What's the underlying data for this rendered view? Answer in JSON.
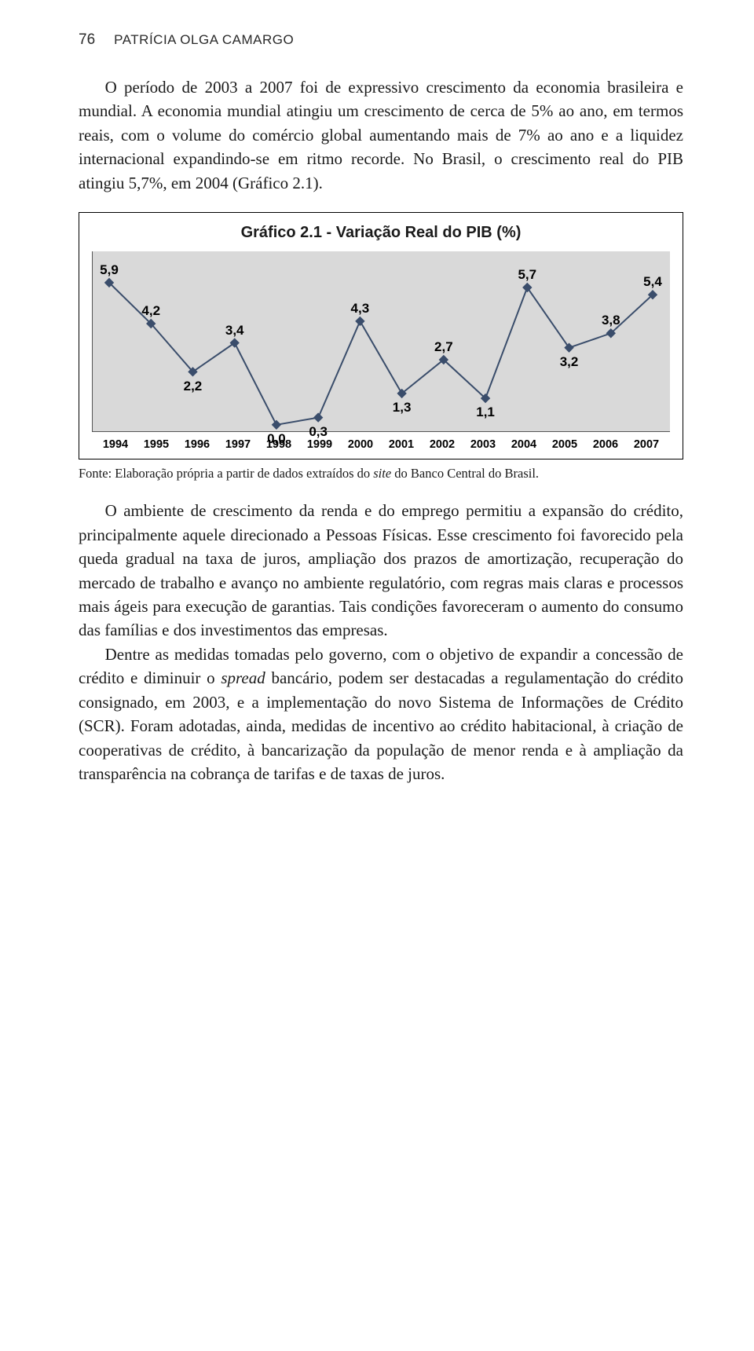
{
  "header": {
    "page_number": "76",
    "author": "PATRÍCIA OLGA CAMARGO"
  },
  "para1": "O período de 2003 a 2007 foi de expressivo crescimento da economia brasileira e mundial. A economia mundial atingiu um crescimento de cerca de 5% ao ano, em termos reais, com o volume do comércio global aumentando mais de 7% ao ano e a liquidez internacional expandindo-se em ritmo recorde. No Brasil, o crescimento real do PIB atingiu 5,7%, em 2004 (Gráfico 2.1).",
  "chart": {
    "title": "Gráfico 2.1 - Variação Real do PIB (%)",
    "type": "line",
    "years": [
      "1994",
      "1995",
      "1996",
      "1997",
      "1998",
      "1999",
      "2000",
      "2001",
      "2002",
      "2003",
      "2004",
      "2005",
      "2006",
      "2007"
    ],
    "values": [
      5.9,
      4.2,
      2.2,
      3.4,
      0.0,
      0.3,
      4.3,
      1.3,
      2.7,
      1.1,
      5.7,
      3.2,
      3.8,
      5.4
    ],
    "labels": [
      "5,9",
      "4,2",
      "2,2",
      "3,4",
      "0,0",
      "0,3",
      "4,3",
      "1,3",
      "2,7",
      "1,1",
      "5,7",
      "3,2",
      "3,8",
      "5,4"
    ],
    "label_pos": [
      "above",
      "above",
      "below",
      "above",
      "below",
      "below",
      "above",
      "below",
      "above",
      "below",
      "above",
      "below",
      "above",
      "above"
    ],
    "ymin": -0.3,
    "ymax": 7.2,
    "line_color": "#3a4d6b",
    "bg_color": "#d9d9d9",
    "label_fontsize": 17,
    "tick_fontsize": 14.5
  },
  "caption_pre": "Fonte: Elaboração própria a partir de dados extraídos do ",
  "caption_site": "site",
  "caption_post": " do Banco Central do Brasil.",
  "para2": "O ambiente de crescimento da renda e do emprego permitiu a expansão do crédito, principalmente aquele direcionado a Pessoas Físicas. Esse crescimento foi favorecido pela queda gradual na taxa de juros, ampliação dos prazos de amortização, recuperação do mercado de trabalho e avanço no ambiente regulatório, com regras mais claras e processos mais ágeis para execução de garantias. Tais condições favoreceram o aumento do consumo das famílias e dos investimentos das empresas.",
  "para3_pre": "Dentre as medidas tomadas pelo governo, com o objetivo de expandir a concessão de crédito e diminuir o ",
  "para3_spread": "spread",
  "para3_post": " bancário, podem ser destacadas a regulamentação do crédito consignado, em 2003, e a implementação do novo Sistema de Informações de Crédito (SCR). Foram adotadas, ainda, medidas de incentivo ao crédito habitacional, à criação de cooperativas de crédito, à bancarização da população de menor renda e à ampliação da transparência na cobrança de tarifas e de taxas de juros."
}
